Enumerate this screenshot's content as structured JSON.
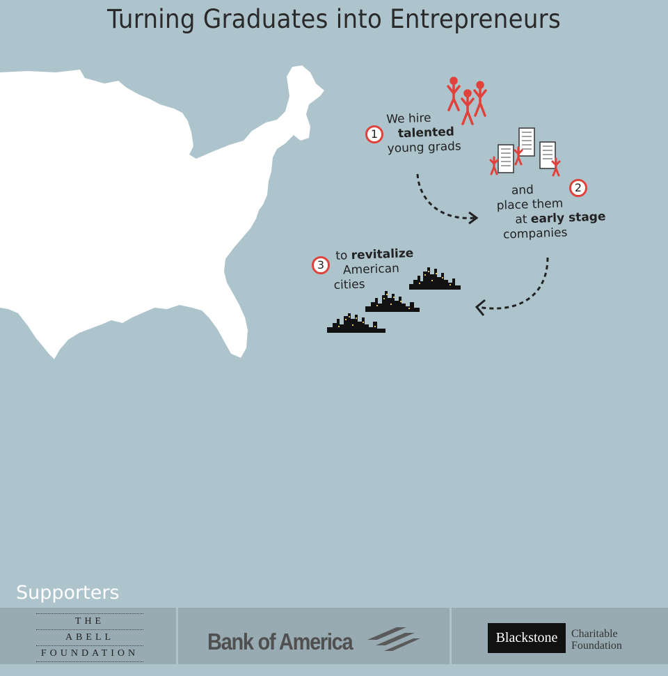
{
  "title": "Turning Graduates into Entrepreneurs",
  "steps": [
    {
      "number": "1",
      "lines": [
        "We hire",
        "talented",
        "young grads"
      ]
    },
    {
      "number": "2",
      "lines": [
        "and",
        "place them",
        "at",
        "early stage",
        "companies"
      ]
    },
    {
      "number": "3",
      "lines": [
        "to",
        "revitalize",
        "American",
        "cities"
      ]
    }
  ],
  "supporters": {
    "label": "Supporters",
    "abell": [
      "THE",
      "ABELL",
      "FOUNDATION"
    ],
    "boa": "Bank of America",
    "blackstone": "Blackstone",
    "blackstone_sub": [
      "Charitable",
      "Foundation"
    ]
  },
  "colors": {
    "background": "#adc4cd",
    "accent": "#e0413a",
    "map": "#ffffff",
    "bar": "#98abb3"
  }
}
